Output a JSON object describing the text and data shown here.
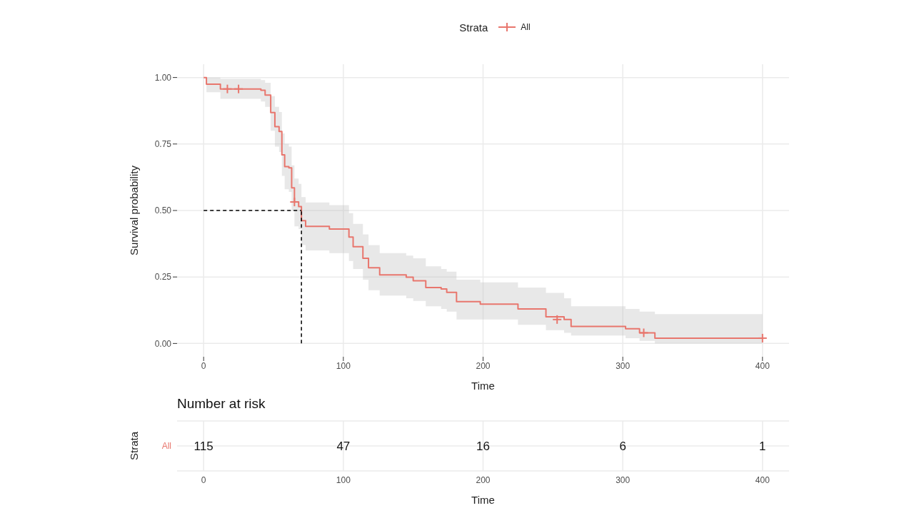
{
  "chart_data": [
    {
      "type": "step",
      "xlabel": "Time",
      "ylabel": "Survival probability",
      "legend_title": "Strata",
      "legend": "top",
      "grid": true,
      "line_style": "solid",
      "xlim": [
        -19,
        419
      ],
      "xticks": [
        0,
        100,
        200,
        300,
        400
      ],
      "ylim": [
        -0.05,
        1.05
      ],
      "yticks": [
        {
          "value": 0,
          "label": "0.00"
        },
        {
          "value": 0.25,
          "label": "0.25"
        },
        {
          "value": 0.5,
          "label": "0.50"
        },
        {
          "value": 0.75,
          "label": "0.75"
        },
        {
          "value": 1,
          "label": "1.00"
        }
      ],
      "series": [
        {
          "name": "All",
          "type": "step",
          "color": "#e8766d",
          "x": [
            0,
            2,
            12,
            41,
            44,
            48,
            51,
            54,
            56,
            58,
            61,
            63,
            65,
            68,
            70,
            73,
            90,
            104,
            107,
            114,
            118,
            126,
            145,
            150,
            159,
            170,
            174,
            181,
            198,
            225,
            245,
            258,
            263,
            302,
            312,
            323,
            400
          ],
          "values": [
            1.0,
            0.975,
            0.957,
            0.952,
            0.934,
            0.868,
            0.815,
            0.797,
            0.709,
            0.665,
            0.66,
            0.585,
            0.532,
            0.515,
            0.462,
            0.44,
            0.43,
            0.4,
            0.364,
            0.32,
            0.285,
            0.258,
            0.249,
            0.236,
            0.21,
            0.205,
            0.192,
            0.157,
            0.148,
            0.13,
            0.1,
            0.09,
            0.064,
            0.055,
            0.04,
            0.02,
            0.02
          ],
          "lower": [
            1.0,
            0.945,
            0.92,
            0.91,
            0.89,
            0.8,
            0.74,
            0.72,
            0.63,
            0.58,
            0.57,
            0.5,
            0.44,
            0.43,
            0.37,
            0.35,
            0.34,
            0.31,
            0.28,
            0.24,
            0.2,
            0.18,
            0.17,
            0.16,
            0.14,
            0.13,
            0.12,
            0.09,
            0.09,
            0.07,
            0.05,
            0.04,
            0.03,
            0.02,
            0.01,
            0.0,
            0.0
          ],
          "upper": [
            1.0,
            1.0,
            0.995,
            0.99,
            0.98,
            0.93,
            0.89,
            0.87,
            0.79,
            0.75,
            0.74,
            0.67,
            0.62,
            0.6,
            0.55,
            0.53,
            0.52,
            0.49,
            0.45,
            0.41,
            0.37,
            0.34,
            0.33,
            0.32,
            0.29,
            0.28,
            0.27,
            0.24,
            0.23,
            0.21,
            0.19,
            0.17,
            0.14,
            0.13,
            0.12,
            0.11,
            0.11
          ]
        },
        {
          "type": "scatter",
          "color": "#e8766d",
          "marker": "cross",
          "x": [
            17,
            25,
            65,
            253,
            315,
            400
          ],
          "values": [
            0.957,
            0.957,
            0.532,
            0.09,
            0.04,
            0.02
          ]
        }
      ],
      "ref_lines": [
        {
          "axis": "x",
          "value": 70,
          "color": "#000000",
          "line_style": "dashed"
        },
        {
          "axis": "y",
          "value": 0.5,
          "color": "#000000",
          "line_style": "dashed"
        }
      ]
    },
    {
      "type": "heatmap",
      "title": "Number at risk",
      "ylabel": "Strata",
      "xlabel": "Time",
      "grid": true,
      "data_labels": true,
      "categories": [
        "0",
        "100",
        "200",
        "300",
        "400"
      ],
      "y_categories": [
        "All"
      ],
      "color": "#e8766d",
      "cells": [
        [
          115,
          47,
          16,
          6,
          1
        ]
      ]
    }
  ]
}
